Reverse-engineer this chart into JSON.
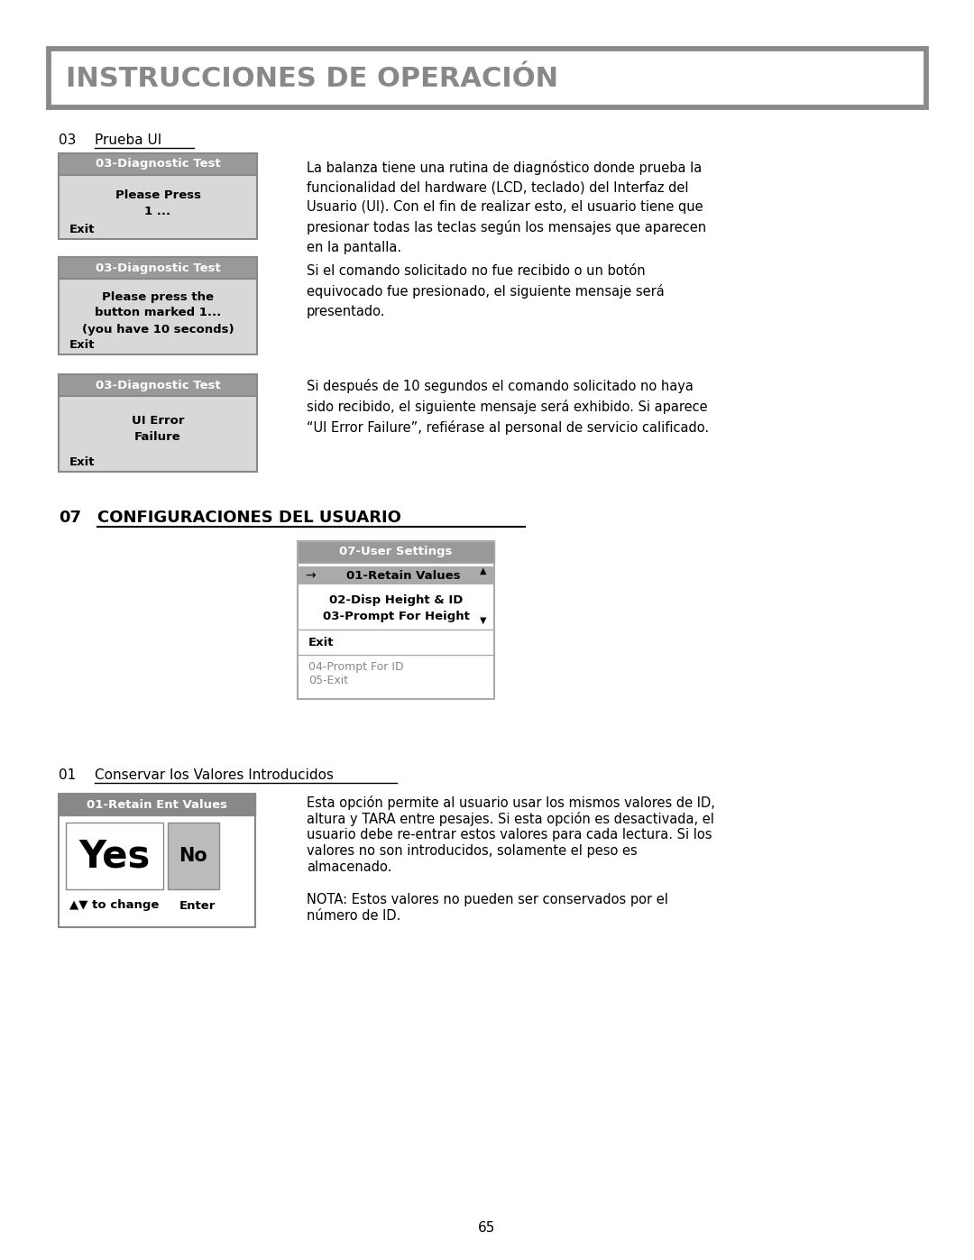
{
  "bg_color": "#ffffff",
  "page_number": "65",
  "header_title": "INSTRUCCIONES DE OPERACIÓN",
  "header_text_color": "#888888",
  "section03_label": "03",
  "section03_title": "Prueba UI",
  "box1_header": "03-Diagnostic Test",
  "box1_line1": "Please Press",
  "box1_line2": "1 ...",
  "box1_exit": "Exit",
  "box2_header": "03-Diagnostic Test",
  "box2_line1": "Please press the",
  "box2_line2": "button marked 1...",
  "box2_line3": "(you have 10 seconds)",
  "box2_exit": "Exit",
  "box3_header": "03-Diagnostic Test",
  "box3_line1": "UI Error",
  "box3_line2": "Failure",
  "box3_exit": "Exit",
  "text1": "La balanza tiene una rutina de diagnóstico donde prueba la\nfuncionalidad del hardware (LCD, teclado) del Interfaz del\nUsuario (UI). Con el fin de realizar esto, el usuario tiene que\npresionar todas las teclas según los mensajes que aparecen\nen la pantalla.",
  "text2": "Si el comando solicitado no fue recibido o un botón\nequivocado fue presionado, el siguiente mensaje será\npresentado.",
  "text3": "Si después de 10 segundos el comando solicitado no haya\nsido recibido, el siguiente mensaje será exhibido. Si aparece\n“UI Error Failure”, refiérase al personal de servicio calificado.",
  "section07_label": "07",
  "section07_title": "CONFIGURACIONES DEL USUARIO",
  "menu_header": "07-User Settings",
  "menu_item1": "01-Retain Values",
  "menu_item2": "02-Disp Height & ID",
  "menu_item3": "03-Prompt For Height",
  "menu_exit": "Exit",
  "menu_item4": "04-Prompt For ID",
  "menu_item5": "05-Exit",
  "section01_label": "01",
  "section01_title": "Conservar los Valores Introducidos",
  "retain_header": "01-Retain Ent Values",
  "retain_yes": "Yes",
  "retain_no": "No",
  "retain_change": "▲▼ to change",
  "retain_enter": "Enter",
  "text4_line1": "Esta opción permite al usuario usar los mismos valores de ID,",
  "text4_line2": "altura y TARA entre pesajes. Si esta opción es desactivada, el",
  "text4_line3": "usuario debe re-entrar estos valores para cada lectura. Si los",
  "text4_line4": "valores no son introducidos, solamente el peso es",
  "text4_line5": "almacenado.",
  "text4_line6": "NOTA: Estos valores no pueden ser conservados por el",
  "text4_line7": "número de ID."
}
